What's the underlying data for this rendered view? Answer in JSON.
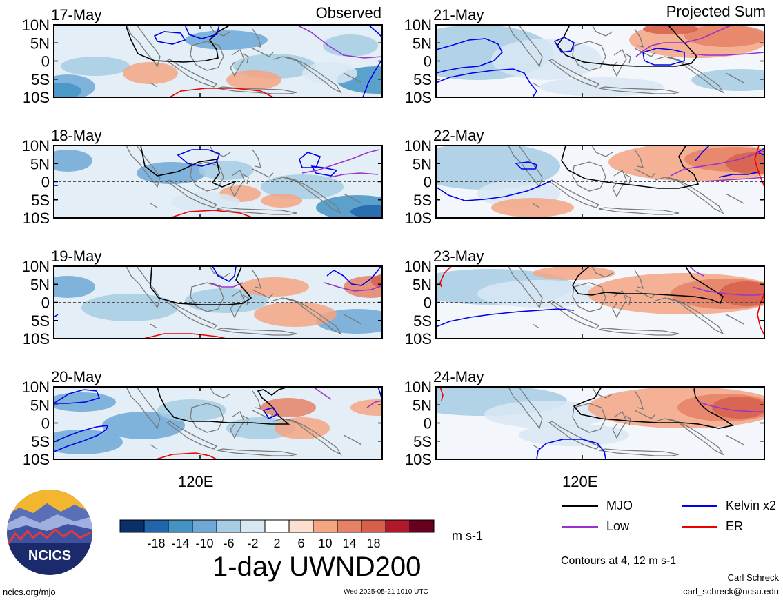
{
  "chart_data": {
    "type": "heatmap",
    "variable": "1-day UWND200",
    "units": "m s-1",
    "observed_label": "Observed",
    "projected_label": "Projected Sum",
    "ytick_labels": [
      "10N",
      "5N",
      "0",
      "5S",
      "10S"
    ],
    "ylim": [
      -10,
      10
    ],
    "xtick_label": "120E",
    "panels": [
      {
        "date": "17-May",
        "group": "Observed"
      },
      {
        "date": "18-May",
        "group": "Observed"
      },
      {
        "date": "19-May",
        "group": "Observed"
      },
      {
        "date": "20-May",
        "group": "Observed"
      },
      {
        "date": "21-May",
        "group": "Projected Sum"
      },
      {
        "date": "22-May",
        "group": "Projected Sum"
      },
      {
        "date": "23-May",
        "group": "Projected Sum"
      },
      {
        "date": "24-May",
        "group": "Projected Sum"
      }
    ],
    "colorbar": {
      "ticks": [
        "-18",
        "-14",
        "-10",
        "-6",
        "-2",
        "2",
        "6",
        "10",
        "14",
        "18"
      ],
      "colors": [
        "#08306b",
        "#2166ac",
        "#4393c3",
        "#6fa8d6",
        "#a6cde3",
        "#d8e8f3",
        "#ffffff",
        "#fbe0d0",
        "#f4a582",
        "#e58266",
        "#d6604d",
        "#b2182b",
        "#67001f"
      ]
    },
    "contour_legend": [
      {
        "label": "MJO",
        "color": "#000000"
      },
      {
        "label": "Kelvin x2",
        "color": "#0000ee"
      },
      {
        "label": "Low",
        "color": "#9933cc"
      },
      {
        "label": "ER",
        "color": "#ee0000"
      }
    ],
    "contour_note": "Contours at 4, 12 m s-1"
  },
  "footer": {
    "logo_text": "NCICS",
    "url": "ncics.org/mjo",
    "timestamp": "Wed 2025-05-21 1010 UTC",
    "author": "Carl Schreck",
    "email": "carl_schreck@ncsu.edu"
  }
}
